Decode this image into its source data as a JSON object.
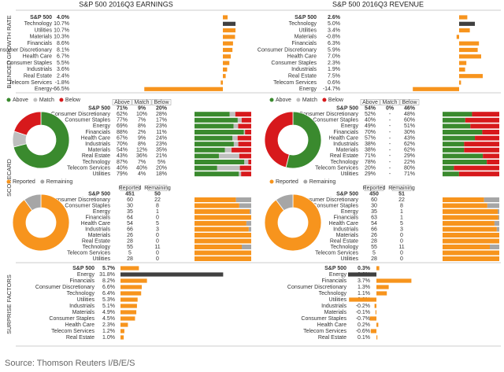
{
  "titles": [
    "S&P 500 2016Q3 EARNINGS",
    "S&P 500 2016Q3 REVENUE"
  ],
  "section_labels": [
    "BLENDED GROWTH RATE",
    "SCORECARD",
    "SURPRISE FACTORS"
  ],
  "source": "Source: Thomson Reuters I/B/E/S",
  "chart_data": [
    {
      "type": "bar",
      "categories": [
        "S&P 500",
        "Technology",
        "Utilities",
        "Materials",
        "Financials",
        "Consumer Discretionary",
        "Health Care",
        "Consumer Staples",
        "Industrials",
        "Real Estate",
        "Telecom Services",
        "Energy"
      ],
      "values": [
        4.0,
        10.7,
        10.7,
        10.3,
        8.6,
        8.1,
        6.7,
        5.5,
        3.6,
        2.4,
        -1.8,
        -66.5
      ],
      "value_labels": [
        "4.0%",
        "10.7%",
        "10.7%",
        "10.3%",
        "8.6%",
        "8.1%",
        "6.7%",
        "5.5%",
        "3.6%",
        "2.4%",
        "-1.8%",
        "-66.5%"
      ],
      "color": "#f7941d",
      "highlight": "Technology",
      "highlight_color": "#404040"
    },
    {
      "type": "bar",
      "categories": [
        "S&P 500",
        "Technology",
        "Utilities",
        "Materials",
        "Financials",
        "Consumer Discretionary",
        "Health Care",
        "Consumer Staples",
        "Industrials",
        "Real Estate",
        "Telecom Services",
        "Energy"
      ],
      "values": [
        2.6,
        5.0,
        3.4,
        -0.8,
        6.3,
        5.9,
        7.0,
        2.3,
        1.9,
        7.5,
        0.6,
        -14.7
      ],
      "value_labels": [
        "2.6%",
        "5.0%",
        "3.4%",
        "-0.8%",
        "6.3%",
        "5.9%",
        "7.0%",
        "2.3%",
        "1.9%",
        "7.5%",
        "0.6%",
        "-14.7%"
      ],
      "color": "#f7941d",
      "highlight": "Technology",
      "highlight_color": "#404040"
    },
    {
      "type": "scorecard",
      "categories": [
        "S&P 500",
        "Consumer Discretionary",
        "Consumer Staples",
        "Energy",
        "Financials",
        "Health Care",
        "Industrials",
        "Materials",
        "Real Estate",
        "Technology",
        "Telecom Services",
        "Utilities"
      ],
      "series": [
        {
          "name": "Above",
          "color": "#3a8a2e",
          "values": [
            71,
            62,
            77,
            69,
            88,
            67,
            70,
            54,
            43,
            87,
            40,
            79
          ],
          "value_labels": [
            "71%",
            "62%",
            "77%",
            "69%",
            "88%",
            "67%",
            "70%",
            "54%",
            "43%",
            "87%",
            "40%",
            "79%"
          ]
        },
        {
          "name": "Match",
          "color": "#bfbfbf",
          "values": [
            9,
            10,
            7,
            8,
            2,
            9,
            8,
            12,
            36,
            7,
            40,
            4
          ],
          "value_labels": [
            "9%",
            "10%",
            "7%",
            "8%",
            "2%",
            "9%",
            "8%",
            "12%",
            "36%",
            "7%",
            "40%",
            "4%"
          ]
        },
        {
          "name": "Below",
          "color": "#d7191c",
          "values": [
            20,
            28,
            17,
            23,
            11,
            24,
            23,
            35,
            21,
            5,
            20,
            18
          ],
          "value_labels": [
            "20%",
            "28%",
            "17%",
            "23%",
            "11%",
            "24%",
            "23%",
            "35%",
            "21%",
            "5%",
            "20%",
            "18%"
          ]
        }
      ]
    },
    {
      "type": "scorecard",
      "categories": [
        "S&P 500",
        "Consumer Discretionary",
        "Consumer Staples",
        "Energy",
        "Financials",
        "Health Care",
        "Industrials",
        "Materials",
        "Real Estate",
        "Technology",
        "Telecom Services",
        "Utilities"
      ],
      "series": [
        {
          "name": "Above",
          "color": "#3a8a2e",
          "values": [
            54,
            52,
            40,
            49,
            70,
            57,
            38,
            38,
            71,
            78,
            20,
            29
          ],
          "value_labels": [
            "54%",
            "52%",
            "40%",
            "49%",
            "70%",
            "57%",
            "38%",
            "38%",
            "71%",
            "78%",
            "20%",
            "29%"
          ]
        },
        {
          "name": "Match",
          "color": "#bfbfbf",
          "values": [
            0,
            0,
            0,
            0,
            0,
            0,
            0,
            0,
            0,
            0,
            0,
            0
          ],
          "value_labels": [
            "0%",
            "-",
            "-",
            "-",
            "-",
            "-",
            "-",
            "-",
            "-",
            "-",
            "-",
            "-"
          ]
        },
        {
          "name": "Below",
          "color": "#d7191c",
          "values": [
            46,
            48,
            60,
            51,
            30,
            43,
            62,
            62,
            29,
            22,
            80,
            71
          ],
          "value_labels": [
            "46%",
            "48%",
            "60%",
            "51%",
            "30%",
            "43%",
            "62%",
            "62%",
            "29%",
            "22%",
            "80%",
            "71%"
          ]
        }
      ]
    },
    {
      "type": "scorecard",
      "categories": [
        "S&P 500",
        "Consumer Discretionary",
        "Consumer Staples",
        "Energy",
        "Financials",
        "Health Care",
        "Industrials",
        "Materials",
        "Real Estate",
        "Technology",
        "Telecom Services",
        "Utilities"
      ],
      "series": [
        {
          "name": "Reported",
          "color": "#f7941d",
          "values": [
            451,
            60,
            30,
            35,
            64,
            54,
            66,
            26,
            28,
            55,
            5,
            28
          ]
        },
        {
          "name": "Remaining",
          "color": "#a6a6a6",
          "values": [
            50,
            22,
            8,
            1,
            0,
            5,
            3,
            0,
            0,
            11,
            0,
            0
          ]
        }
      ]
    },
    {
      "type": "scorecard",
      "categories": [
        "S&P 500",
        "Consumer Discretionary",
        "Consumer Staples",
        "Energy",
        "Financials",
        "Health Care",
        "Industrials",
        "Materials",
        "Real Estate",
        "Technology",
        "Telecom Services",
        "Utilities"
      ],
      "series": [
        {
          "name": "Reported",
          "color": "#f7941d",
          "values": [
            450,
            60,
            30,
            35,
            63,
            54,
            66,
            26,
            28,
            55,
            5,
            28
          ]
        },
        {
          "name": "Remaining",
          "color": "#a6a6a6",
          "values": [
            51,
            22,
            8,
            1,
            1,
            5,
            3,
            0,
            0,
            11,
            0,
            0
          ]
        }
      ]
    },
    {
      "type": "bar",
      "categories": [
        "S&P 500",
        "Energy",
        "Financials",
        "Consumer Discretionary",
        "Technology",
        "Utilities",
        "Industrials",
        "Materials",
        "Consumer Staples",
        "Health Care",
        "Telecom Services",
        "Real Estate"
      ],
      "values": [
        5.7,
        31.8,
        8.2,
        6.6,
        6.4,
        5.3,
        5.1,
        4.9,
        4.5,
        2.3,
        1.2,
        1.0
      ],
      "value_labels": [
        "5.7%",
        "31.8%",
        "8.2%",
        "6.6%",
        "6.4%",
        "5.3%",
        "5.1%",
        "4.9%",
        "4.5%",
        "2.3%",
        "1.2%",
        "1.0%"
      ],
      "color": "#f7941d",
      "highlight": "Energy",
      "highlight_color": "#404040"
    },
    {
      "type": "bar",
      "categories": [
        "S&P 500",
        "Energy",
        "Financials",
        "Consumer Discretionary",
        "Technology",
        "Utilities",
        "Industrials",
        "Materials",
        "Consumer Staples",
        "Health Care",
        "Telecom Services",
        "Real Estate"
      ],
      "values": [
        0.3,
        -3.0,
        3.7,
        1.3,
        1.1,
        -2.9,
        -0.2,
        -0.1,
        -0.7,
        0.2,
        -0.6,
        0.1
      ],
      "value_labels": [
        "0.3%",
        "-3.0%",
        "3.7%",
        "1.3%",
        "1.1%",
        "-2.9%",
        "-0.2%",
        "-0.1%",
        "-0.7%",
        "0.2%",
        "-0.6%",
        "0.1%"
      ],
      "color": "#f7941d",
      "highlight": "Energy",
      "highlight_color": "#404040"
    }
  ]
}
